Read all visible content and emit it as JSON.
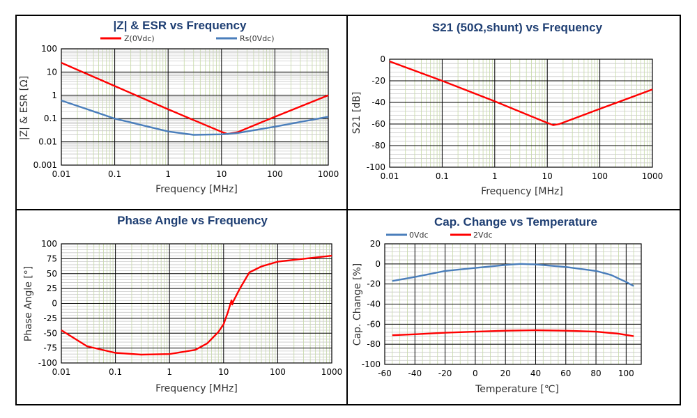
{
  "chart_data": [
    {
      "type": "line",
      "title": "|Z| & ESR vs Frequency",
      "xlabel": "Frequency [MHz]",
      "ylabel": "|Z| & ESR [Ω]",
      "x_scale": "log",
      "y_scale": "log",
      "xlim": [
        0.01,
        1000
      ],
      "ylim": [
        0.001,
        100
      ],
      "x_ticks": [
        "0.01",
        "0.1",
        "1",
        "10",
        "100",
        "1000"
      ],
      "y_ticks": [
        "0.001",
        "0.01",
        "0.1",
        "1",
        "10",
        "100"
      ],
      "grid": true,
      "legend": "top",
      "series": [
        {
          "name": "Z(0Vdc)",
          "color": "#ff0000",
          "x": [
            0.01,
            0.1,
            1,
            10,
            13,
            20,
            100,
            1000
          ],
          "y": [
            25,
            2.5,
            0.25,
            0.027,
            0.022,
            0.026,
            0.12,
            1.0
          ]
        },
        {
          "name": "Rs(0Vdc)",
          "color": "#4a7ebb",
          "x": [
            0.01,
            0.1,
            1,
            3,
            10,
            20,
            100,
            1000
          ],
          "y": [
            0.6,
            0.1,
            0.028,
            0.02,
            0.021,
            0.024,
            0.045,
            0.12
          ]
        }
      ]
    },
    {
      "type": "line",
      "title": "S21 (50Ω,shunt) vs Frequency",
      "xlabel": "Frequency [MHz]",
      "ylabel": "S21 [dB]",
      "x_scale": "log",
      "xlim": [
        0.01,
        1000
      ],
      "ylim": [
        -100,
        0
      ],
      "x_ticks": [
        "0.01",
        "0.1",
        "1",
        "10",
        "100",
        "1000"
      ],
      "y_ticks": [
        "0",
        "-20",
        "-40",
        "-60",
        "-80",
        "-100"
      ],
      "grid": true,
      "series": [
        {
          "color": "#ff0000",
          "x": [
            0.01,
            0.1,
            1,
            10,
            13,
            17,
            100,
            1000
          ],
          "y": [
            -2,
            -20,
            -39,
            -59,
            -61,
            -60,
            -46,
            -28
          ]
        }
      ]
    },
    {
      "type": "line",
      "title": "Phase Angle vs Frequency",
      "xlabel": "Frequency [MHz]",
      "ylabel": "Phase Angle [°]",
      "x_scale": "log",
      "xlim": [
        0.01,
        1000
      ],
      "ylim": [
        -100,
        100
      ],
      "x_ticks": [
        "0.01",
        "0.1",
        "1",
        "10",
        "100",
        "1000"
      ],
      "y_ticks": [
        "100",
        "75",
        "50",
        "25",
        "0",
        "-25",
        "-50",
        "-75",
        "-100"
      ],
      "grid": true,
      "series": [
        {
          "color": "#ff0000",
          "x": [
            0.01,
            0.03,
            0.1,
            0.3,
            1,
            3,
            5,
            8,
            10,
            12,
            14,
            14.5,
            15,
            20,
            30,
            50,
            100,
            1000
          ],
          "y": [
            -45,
            -72,
            -83,
            -86,
            -85,
            -78,
            -67,
            -48,
            -35,
            -15,
            5,
            -2,
            3,
            25,
            52,
            62,
            70,
            80
          ]
        }
      ]
    },
    {
      "type": "line",
      "title": "Cap. Change vs Temperature",
      "xlabel": "Temperature [℃]",
      "ylabel": "Cap. Change [%]",
      "xlim": [
        -60,
        110
      ],
      "ylim": [
        -100,
        20
      ],
      "x_ticks": [
        "-60",
        "-40",
        "-20",
        "0",
        "20",
        "40",
        "60",
        "80",
        "100"
      ],
      "y_ticks": [
        "20",
        "0",
        "-20",
        "-40",
        "-60",
        "-80",
        "-100"
      ],
      "grid": true,
      "legend": "top-left",
      "series": [
        {
          "name": "0Vdc",
          "color": "#4a7ebb",
          "x": [
            -55,
            -40,
            -20,
            0,
            20,
            30,
            40,
            60,
            80,
            90,
            100,
            105
          ],
          "y": [
            -17,
            -13,
            -7,
            -4,
            -1,
            0,
            -0.5,
            -3,
            -7,
            -11,
            -18,
            -22
          ]
        },
        {
          "name": "2Vdc",
          "color": "#ff0000",
          "x": [
            -55,
            -40,
            -20,
            0,
            20,
            40,
            60,
            80,
            95,
            105
          ],
          "y": [
            -71,
            -70,
            -68.5,
            -67.5,
            -66.5,
            -66,
            -66.5,
            -67.5,
            -69.5,
            -72
          ]
        }
      ]
    }
  ]
}
